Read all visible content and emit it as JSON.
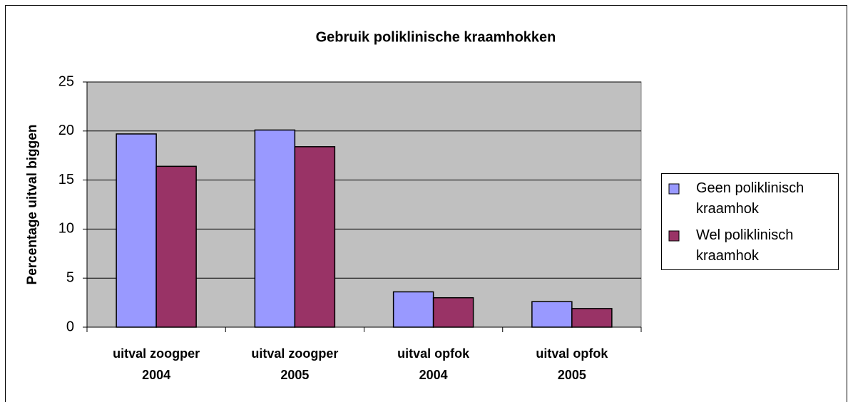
{
  "chart_data": {
    "type": "bar",
    "title": "Gebruik poliklinische kraamhokken",
    "y_label": "Percentage uitval biggen",
    "categories": [
      "uitval zoogper 2004",
      "uitval zoogper 2005",
      "uitval opfok 2004",
      "uitval opfok 2005"
    ],
    "series": [
      {
        "name": "Geen poliklinisch kraamhok",
        "color": "#9999ff",
        "values": [
          19.7,
          20.1,
          3.6,
          2.6
        ]
      },
      {
        "name": "Wel poliklinisch kraamhok",
        "color": "#993366",
        "values": [
          16.4,
          18.4,
          3.0,
          1.9
        ]
      }
    ],
    "ylim": [
      0,
      25
    ],
    "yticks": [
      0,
      5,
      10,
      15,
      20,
      25
    ],
    "grid": true,
    "legend": "right",
    "plot_background": "#c0c0c0"
  }
}
